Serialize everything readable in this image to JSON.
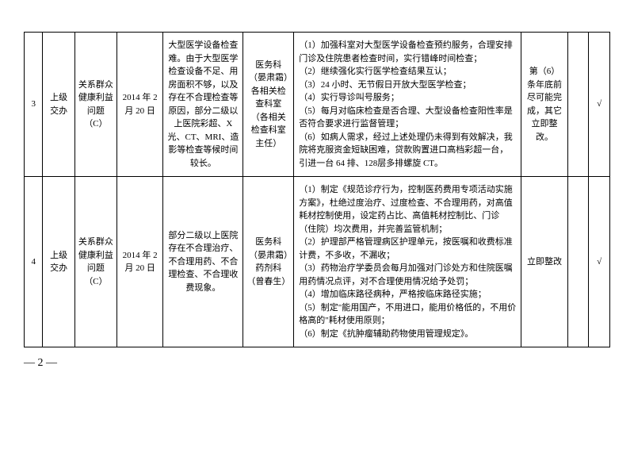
{
  "rows": [
    {
      "n": "3",
      "c1": "上级交办",
      "c2": "关系群众健康利益问题（C）",
      "c3": "2014 年 2 月 20 日",
      "c4": "大型医学设备检查难。由于大型医学检查设备不足、用房面积不够，以及存在不合理检查等原因，部分二级以上医院彩超、X 光、CT、MRI、造影等检查等候时间较长。",
      "c5": "医务科（晏肃霜）各相关检查科室（各相关检查科室主任）",
      "c6": "（1）加强科室对大型医学设备检查预约服务，合理安排门诊及住院患者检查时间，实行错峰时间检查；\n（2）继续强化实行医学检查结果互认；\n（3）24 小时、无节假日开放大型医学检查；\n（4）实行导诊叫号服务；\n（5）每月对临床检查是否合理、大型设备检查阳性率是否符合要求进行监督管理；\n（6）如病人需求，经过上述处理仍未得到有效解决，我院将克服资金短缺困难，贷款购置进口高档彩超一台，引进一台 64 排、128层多排螺旋 CT。",
      "c7": "第（6）条年底前尽可能完成，其它立即整改。",
      "c8": "",
      "c9": "√"
    },
    {
      "n": "4",
      "c1": "上级交办",
      "c2": "关系群众健康利益问题（C）",
      "c3": "2014 年 2 月 20 日",
      "c4": "部分二级以上医院存在不合理治疗、不合理用药、不合理检查、不合理收费现象。",
      "c5": "医务科（晏肃霜）药剂科（曾春生）",
      "c6": "（1）制定《规范诊疗行为，控制医药费用专项活动实施方案》，杜绝过度治疗、过度检查、不合理用药，对高值耗材控制使用，设定药占比、高值耗材控制比、门诊（住院）均次费用，并完善监管机制；\n（2）护理部严格管理病区护理单元，按医嘱和收费标准计费，不多收，不漏收；\n（3）药物治疗学委员会每月加强对门诊处方和住院医嘱用药情况点评，对不合理使用情况给予处罚；\n（4）增加临床路径病种，严格按临床路径实施；\n（5）制定\"能用国产，不用进口，能用价格低的，不用价格高的\"耗材使用原则；\n（6）制定《抗肿瘤辅助药物使用管理规定》。",
      "c7": "立即整改",
      "c8": "",
      "c9": "√"
    }
  ],
  "pageNum": "— 2 —"
}
